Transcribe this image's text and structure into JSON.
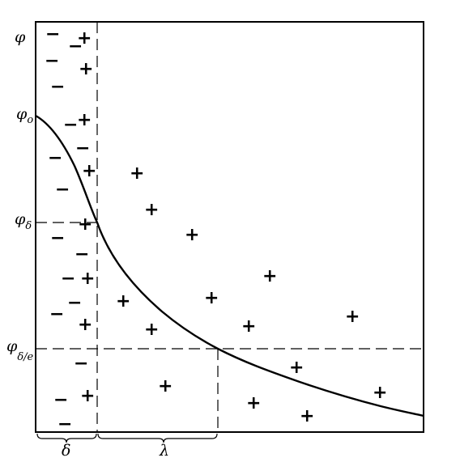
{
  "labels": {
    "phi": "φ",
    "phi0_base": "φ",
    "phi0_sub": "o",
    "phid_base": "φ",
    "phid_sub": "δ",
    "phide_base": "φ",
    "phide_sub": "δ/e",
    "delta": "δ",
    "lambda": "λ"
  },
  "signs": {
    "minus": "−",
    "plus": "+"
  }
}
